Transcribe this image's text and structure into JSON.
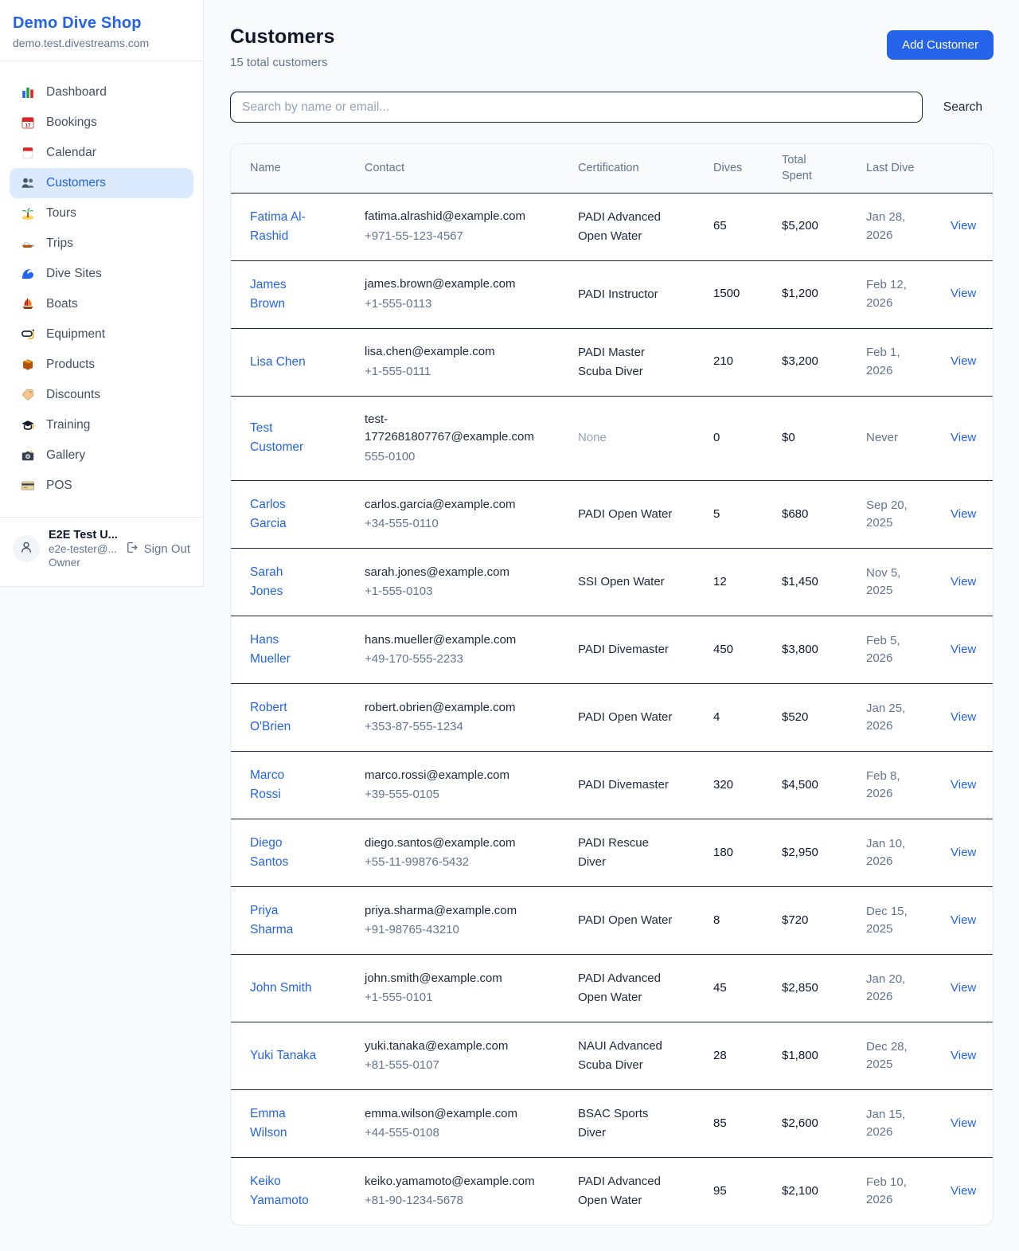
{
  "colors": {
    "accent": "#2563eb",
    "active_item_bg": "#dbeafe",
    "page_bg": "#f8fafc",
    "row_divider": "#1e293b",
    "muted_text": "#64748b"
  },
  "sidebar": {
    "brand": {
      "title": "Demo Dive Shop",
      "domain": "demo.test.divestreams.com"
    },
    "items": [
      {
        "label": "Dashboard",
        "icon": "dashboard-icon",
        "active": false
      },
      {
        "label": "Bookings",
        "icon": "bookings-icon",
        "active": false
      },
      {
        "label": "Calendar",
        "icon": "calendar-icon",
        "active": false
      },
      {
        "label": "Customers",
        "icon": "customers-icon",
        "active": true
      },
      {
        "label": "Tours",
        "icon": "tours-icon",
        "active": false
      },
      {
        "label": "Trips",
        "icon": "trips-icon",
        "active": false
      },
      {
        "label": "Dive Sites",
        "icon": "dive-sites-icon",
        "active": false
      },
      {
        "label": "Boats",
        "icon": "boats-icon",
        "active": false
      },
      {
        "label": "Equipment",
        "icon": "equipment-icon",
        "active": false
      },
      {
        "label": "Products",
        "icon": "products-icon",
        "active": false
      },
      {
        "label": "Discounts",
        "icon": "discounts-icon",
        "active": false
      },
      {
        "label": "Training",
        "icon": "training-icon",
        "active": false
      },
      {
        "label": "Gallery",
        "icon": "gallery-icon",
        "active": false
      },
      {
        "label": "POS",
        "icon": "pos-icon",
        "active": false
      }
    ],
    "user": {
      "name": "E2E Test U...",
      "email": "e2e-tester@...",
      "role": "Owner",
      "sign_out_label": "Sign Out"
    }
  },
  "header": {
    "title": "Customers",
    "subtitle": "15 total customers",
    "add_button_label": "Add Customer"
  },
  "search": {
    "placeholder": "Search by name or email...",
    "button_label": "Search"
  },
  "table": {
    "columns": [
      "Name",
      "Contact",
      "Certification",
      "Dives",
      "Total Spent",
      "Last Dive",
      ""
    ],
    "rows": [
      {
        "name": "Fatima Al-Rashid",
        "email": "fatima.alrashid@example.com",
        "phone": "+971-55-123-4567",
        "certification": "PADI Advanced Open Water",
        "dives": "65",
        "total_spent": "$5,200",
        "last_dive": "Jan 28, 2026",
        "action": "View"
      },
      {
        "name": "James Brown",
        "email": "james.brown@example.com",
        "phone": "+1-555-0113",
        "certification": "PADI Instructor",
        "dives": "1500",
        "total_spent": "$1,200",
        "last_dive": "Feb 12, 2026",
        "action": "View"
      },
      {
        "name": "Lisa Chen",
        "email": "lisa.chen@example.com",
        "phone": "+1-555-0111",
        "certification": "PADI Master Scuba Diver",
        "dives": "210",
        "total_spent": "$3,200",
        "last_dive": "Feb 1, 2026",
        "action": "View"
      },
      {
        "name": "Test Customer",
        "email": "test-1772681807767@example.com",
        "phone": "555-0100",
        "certification": "None",
        "dives": "0",
        "total_spent": "$0",
        "last_dive": "Never",
        "action": "View"
      },
      {
        "name": "Carlos Garcia",
        "email": "carlos.garcia@example.com",
        "phone": "+34-555-0110",
        "certification": "PADI Open Water",
        "dives": "5",
        "total_spent": "$680",
        "last_dive": "Sep 20, 2025",
        "action": "View"
      },
      {
        "name": "Sarah Jones",
        "email": "sarah.jones@example.com",
        "phone": "+1-555-0103",
        "certification": "SSI Open Water",
        "dives": "12",
        "total_spent": "$1,450",
        "last_dive": "Nov 5, 2025",
        "action": "View"
      },
      {
        "name": "Hans Mueller",
        "email": "hans.mueller@example.com",
        "phone": "+49-170-555-2233",
        "certification": "PADI Divemaster",
        "dives": "450",
        "total_spent": "$3,800",
        "last_dive": "Feb 5, 2026",
        "action": "View"
      },
      {
        "name": "Robert O'Brien",
        "email": "robert.obrien@example.com",
        "phone": "+353-87-555-1234",
        "certification": "PADI Open Water",
        "dives": "4",
        "total_spent": "$520",
        "last_dive": "Jan 25, 2026",
        "action": "View"
      },
      {
        "name": "Marco Rossi",
        "email": "marco.rossi@example.com",
        "phone": "+39-555-0105",
        "certification": "PADI Divemaster",
        "dives": "320",
        "total_spent": "$4,500",
        "last_dive": "Feb 8, 2026",
        "action": "View"
      },
      {
        "name": "Diego Santos",
        "email": "diego.santos@example.com",
        "phone": "+55-11-99876-5432",
        "certification": "PADI Rescue Diver",
        "dives": "180",
        "total_spent": "$2,950",
        "last_dive": "Jan 10, 2026",
        "action": "View"
      },
      {
        "name": "Priya Sharma",
        "email": "priya.sharma@example.com",
        "phone": "+91-98765-43210",
        "certification": "PADI Open Water",
        "dives": "8",
        "total_spent": "$720",
        "last_dive": "Dec 15, 2025",
        "action": "View"
      },
      {
        "name": "John Smith",
        "email": "john.smith@example.com",
        "phone": "+1-555-0101",
        "certification": "PADI Advanced Open Water",
        "dives": "45",
        "total_spent": "$2,850",
        "last_dive": "Jan 20, 2026",
        "action": "View"
      },
      {
        "name": "Yuki Tanaka",
        "email": "yuki.tanaka@example.com",
        "phone": "+81-555-0107",
        "certification": "NAUI Advanced Scuba Diver",
        "dives": "28",
        "total_spent": "$1,800",
        "last_dive": "Dec 28, 2025",
        "action": "View"
      },
      {
        "name": "Emma Wilson",
        "email": "emma.wilson@example.com",
        "phone": "+44-555-0108",
        "certification": "BSAC Sports Diver",
        "dives": "85",
        "total_spent": "$2,600",
        "last_dive": "Jan 15, 2026",
        "action": "View"
      },
      {
        "name": "Keiko Yamamoto",
        "email": "keiko.yamamoto@example.com",
        "phone": "+81-90-1234-5678",
        "certification": "PADI Advanced Open Water",
        "dives": "95",
        "total_spent": "$2,100",
        "last_dive": "Feb 10, 2026",
        "action": "View"
      }
    ]
  }
}
